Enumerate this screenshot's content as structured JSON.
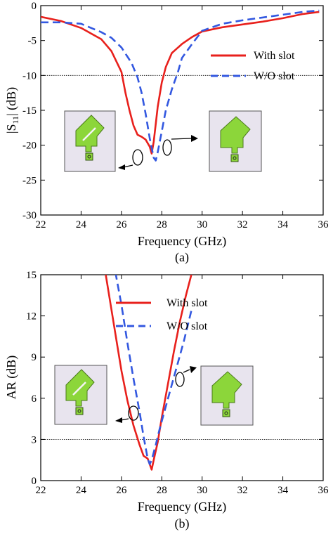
{
  "chart_data": [
    {
      "type": "line",
      "caption": "(a)",
      "xlabel": "Frequency (GHz)",
      "ylabel_main": "|S",
      "ylabel_sub": "11",
      "ylabel_tail": "| (dB)",
      "xlim": [
        22,
        36
      ],
      "ylim": [
        -30,
        0
      ],
      "xticks": [
        "22",
        "24",
        "26",
        "28",
        "30",
        "32",
        "34",
        "36"
      ],
      "yticks": [
        "0",
        "-5",
        "-10",
        "-15",
        "-20",
        "-25",
        "-30"
      ],
      "reference_line": -10,
      "legend_position": "top-right",
      "series": [
        {
          "name": "With slot",
          "color": "#e8201c",
          "dash": "solid",
          "x": [
            22,
            23,
            24,
            25,
            25.5,
            26,
            26.2,
            26.4,
            26.6,
            26.8,
            27,
            27.2,
            27.4,
            27.5,
            27.6,
            27.8,
            28,
            28.2,
            28.5,
            29,
            29.5,
            30,
            31,
            32,
            33,
            34,
            35,
            35.8
          ],
          "y": [
            -1.6,
            -2.2,
            -3.2,
            -4.8,
            -6.5,
            -9.5,
            -12.5,
            -15,
            -17.2,
            -18.5,
            -18.8,
            -19.2,
            -20.2,
            -21.2,
            -19.5,
            -14.5,
            -11,
            -8.8,
            -6.8,
            -5.5,
            -4.5,
            -3.7,
            -3.1,
            -2.7,
            -2.3,
            -1.8,
            -1.2,
            -0.9
          ]
        },
        {
          "name": "W/O slot",
          "color": "#3358e0",
          "dash": "dashed",
          "x": [
            22,
            23,
            24,
            24.5,
            25,
            25.5,
            26,
            26.5,
            26.8,
            27,
            27.2,
            27.4,
            27.6,
            27.7,
            27.8,
            28,
            28.2,
            28.5,
            28.8,
            29,
            29.5,
            30,
            31,
            32,
            33,
            34,
            35,
            35.8
          ],
          "y": [
            -2.4,
            -2.4,
            -2.6,
            -3.2,
            -3.8,
            -4.6,
            -6,
            -8.2,
            -10.3,
            -12.5,
            -15.5,
            -19,
            -21.8,
            -22.2,
            -21,
            -18,
            -15,
            -12,
            -9.5,
            -7.5,
            -5.5,
            -3.6,
            -2.6,
            -2.1,
            -1.7,
            -1.3,
            -0.9,
            -0.7
          ]
        }
      ],
      "insets": [
        {
          "label": "with-slot-antenna",
          "slot": true
        },
        {
          "label": "without-slot-antenna",
          "slot": false
        }
      ]
    },
    {
      "type": "line",
      "caption": "(b)",
      "xlabel": "Frequency (GHz)",
      "ylabel": "AR (dB)",
      "xlim": [
        22,
        36
      ],
      "ylim": [
        0,
        15
      ],
      "xticks": [
        "22",
        "24",
        "26",
        "28",
        "30",
        "32",
        "34",
        "36"
      ],
      "yticks": [
        "0",
        "3",
        "6",
        "9",
        "12",
        "15"
      ],
      "reference_line": 3,
      "legend_position": "top-center",
      "series": [
        {
          "name": "With slot",
          "color": "#e8201c",
          "dash": "solid",
          "x": [
            25.2,
            25.5,
            25.8,
            26,
            26.3,
            26.6,
            26.9,
            27.1,
            27.3,
            27.5,
            27.6,
            27.8,
            28,
            28.3,
            28.6,
            28.9,
            29.2,
            29.5
          ],
          "y": [
            15.2,
            12.5,
            9.8,
            8,
            5.8,
            4,
            2.6,
            1.8,
            1.6,
            0.8,
            1.5,
            2.8,
            4.6,
            7,
            9.4,
            11.6,
            13.5,
            15.2
          ]
        },
        {
          "name": "W/O slot",
          "color": "#3358e0",
          "dash": "dashed",
          "x": [
            25.7,
            26,
            26.3,
            26.6,
            26.9,
            27.1,
            27.3,
            27.4,
            27.5,
            27.7,
            27.9,
            28.2,
            28.5,
            28.8,
            29.1,
            29.5
          ],
          "y": [
            15.2,
            12.8,
            10,
            7.4,
            5,
            3.2,
            1.6,
            1.2,
            1.5,
            2.6,
            3.8,
            5.4,
            7,
            8.6,
            10.2,
            12.6
          ]
        }
      ],
      "insets": [
        {
          "label": "with-slot-antenna",
          "slot": true
        },
        {
          "label": "without-slot-antenna",
          "slot": false
        }
      ]
    }
  ]
}
